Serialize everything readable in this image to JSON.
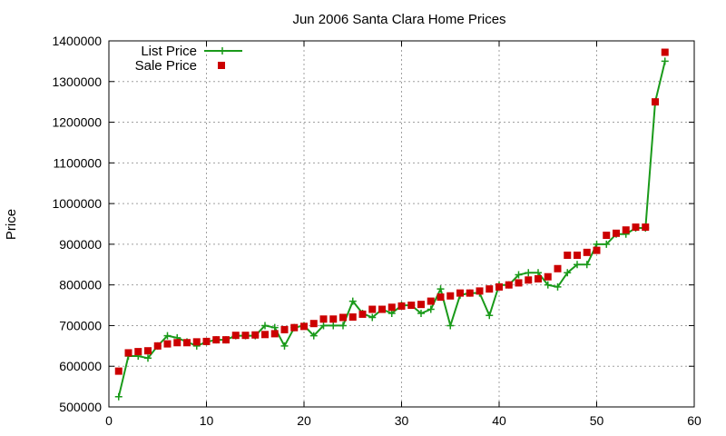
{
  "chart_data": {
    "type": "line",
    "title": "Jun 2006 Santa Clara Home Prices",
    "xlabel": "",
    "ylabel": "Price",
    "xlim": [
      0,
      60
    ],
    "ylim": [
      500000,
      1400000
    ],
    "xticks": [
      0,
      10,
      20,
      30,
      40,
      50,
      60
    ],
    "yticks": [
      500000,
      600000,
      700000,
      800000,
      900000,
      1000000,
      1100000,
      1200000,
      1300000,
      1400000
    ],
    "grid": true,
    "legend_position": "top-left",
    "series": [
      {
        "name": "List Price",
        "style": "line-with-plus-markers",
        "color": "#1a9a1a",
        "x": [
          1,
          2,
          3,
          4,
          5,
          6,
          7,
          8,
          9,
          10,
          11,
          12,
          13,
          14,
          15,
          16,
          17,
          18,
          19,
          20,
          21,
          22,
          23,
          24,
          25,
          26,
          27,
          28,
          29,
          30,
          31,
          32,
          33,
          34,
          35,
          36,
          37,
          38,
          39,
          40,
          41,
          42,
          43,
          44,
          45,
          46,
          47,
          48,
          49,
          50,
          51,
          52,
          53,
          54,
          55,
          56,
          57
        ],
        "values": [
          525000,
          625000,
          625000,
          620000,
          650000,
          675000,
          670000,
          660000,
          650000,
          660000,
          665000,
          665000,
          675000,
          675000,
          675000,
          700000,
          695000,
          650000,
          695000,
          700000,
          675000,
          700000,
          700000,
          700000,
          760000,
          730000,
          720000,
          740000,
          730000,
          750000,
          750000,
          730000,
          740000,
          790000,
          700000,
          775000,
          780000,
          780000,
          725000,
          800000,
          800000,
          825000,
          830000,
          830000,
          800000,
          795000,
          830000,
          850000,
          850000,
          900000,
          900000,
          925000,
          925000,
          940000,
          940000,
          1250000,
          1350000
        ]
      },
      {
        "name": "Sale Price",
        "style": "square-markers",
        "color": "#cc0000",
        "x": [
          1,
          2,
          3,
          4,
          5,
          6,
          7,
          8,
          9,
          10,
          11,
          12,
          13,
          14,
          15,
          16,
          17,
          18,
          19,
          20,
          21,
          22,
          23,
          24,
          25,
          26,
          27,
          28,
          29,
          30,
          31,
          32,
          33,
          34,
          35,
          36,
          37,
          38,
          39,
          40,
          41,
          42,
          43,
          44,
          45,
          46,
          47,
          48,
          49,
          50,
          51,
          52,
          53,
          54,
          55,
          56,
          57
        ],
        "values": [
          588000,
          633000,
          636000,
          638000,
          650000,
          655000,
          658000,
          658000,
          660000,
          661000,
          665000,
          665000,
          676000,
          676000,
          677000,
          678000,
          680000,
          690000,
          695000,
          698000,
          705000,
          716000,
          716000,
          720000,
          721000,
          728000,
          740000,
          740000,
          745000,
          748000,
          750000,
          752000,
          760000,
          770000,
          773000,
          780000,
          780000,
          785000,
          790000,
          795000,
          800000,
          805000,
          812000,
          815000,
          820000,
          840000,
          873000,
          873000,
          880000,
          885000,
          922000,
          927000,
          935000,
          942000,
          942000,
          1250000,
          1372000
        ]
      }
    ]
  }
}
